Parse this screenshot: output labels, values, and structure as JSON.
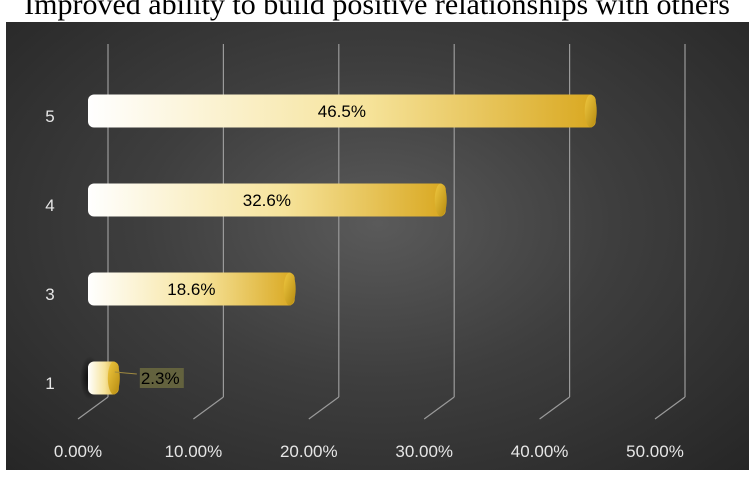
{
  "title": "Improved ability to build positive relationships with others",
  "chart_data": {
    "type": "bar",
    "orientation": "horizontal",
    "style": "3d-cylinder",
    "categories": [
      "1",
      "3",
      "4",
      "5"
    ],
    "values": [
      2.3,
      18.6,
      32.6,
      46.5
    ],
    "data_labels": [
      "2.3%",
      "18.6%",
      "32.6%",
      "46.5%"
    ],
    "xlim": [
      0,
      50
    ],
    "x_tick_labels": [
      "0.00%",
      "10.00%",
      "20.00%",
      "30.00%",
      "40.00%",
      "50.00%"
    ],
    "grid": true,
    "legend": "none",
    "colors": {
      "bar_light": "#ffffff",
      "bar_mid": "#f6e39a",
      "bar_dark": "#d9a820",
      "background": "#3a3a3a",
      "gridline": "#9a9a9a",
      "tick_text": "#e6e6e6",
      "label_text": "#000000"
    }
  }
}
